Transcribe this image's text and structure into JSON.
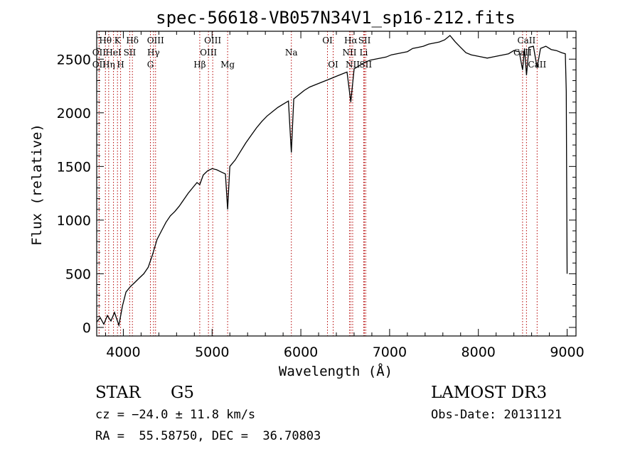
{
  "chart_data": {
    "type": "line",
    "title": "spec-56618-VB057N34V1_sp16-212.fits",
    "xlabel": "Wavelength (Å)",
    "ylabel": "Flux (relative)",
    "xlim": [
      3700,
      9100
    ],
    "ylim": [
      -80,
      2760
    ],
    "xticks": [
      4000,
      5000,
      6000,
      7000,
      8000,
      9000
    ],
    "yticks": [
      0,
      500,
      1000,
      1500,
      2000,
      2500
    ],
    "series": [
      {
        "name": "flux",
        "points": [
          [
            3700,
            50
          ],
          [
            3740,
            90
          ],
          [
            3780,
            30
          ],
          [
            3820,
            110
          ],
          [
            3860,
            60
          ],
          [
            3900,
            140
          ],
          [
            3950,
            20
          ],
          [
            3990,
            200
          ],
          [
            4030,
            330
          ],
          [
            4080,
            380
          ],
          [
            4130,
            420
          ],
          [
            4180,
            460
          ],
          [
            4230,
            500
          ],
          [
            4280,
            560
          ],
          [
            4330,
            680
          ],
          [
            4380,
            820
          ],
          [
            4430,
            900
          ],
          [
            4480,
            980
          ],
          [
            4530,
            1040
          ],
          [
            4580,
            1080
          ],
          [
            4630,
            1130
          ],
          [
            4680,
            1190
          ],
          [
            4730,
            1250
          ],
          [
            4780,
            1300
          ],
          [
            4830,
            1350
          ],
          [
            4861,
            1330
          ],
          [
            4900,
            1420
          ],
          [
            4950,
            1460
          ],
          [
            5000,
            1480
          ],
          [
            5050,
            1470
          ],
          [
            5100,
            1450
          ],
          [
            5150,
            1430
          ],
          [
            5175,
            1100
          ],
          [
            5200,
            1500
          ],
          [
            5260,
            1560
          ],
          [
            5320,
            1640
          ],
          [
            5380,
            1720
          ],
          [
            5440,
            1790
          ],
          [
            5500,
            1860
          ],
          [
            5560,
            1920
          ],
          [
            5620,
            1970
          ],
          [
            5680,
            2010
          ],
          [
            5740,
            2050
          ],
          [
            5800,
            2080
          ],
          [
            5860,
            2110
          ],
          [
            5893,
            1630
          ],
          [
            5920,
            2130
          ],
          [
            5980,
            2170
          ],
          [
            6040,
            2210
          ],
          [
            6100,
            2240
          ],
          [
            6160,
            2260
          ],
          [
            6220,
            2280
          ],
          [
            6280,
            2300
          ],
          [
            6340,
            2320
          ],
          [
            6400,
            2340
          ],
          [
            6460,
            2360
          ],
          [
            6520,
            2380
          ],
          [
            6563,
            2100
          ],
          [
            6600,
            2410
          ],
          [
            6660,
            2440
          ],
          [
            6720,
            2470
          ],
          [
            6780,
            2490
          ],
          [
            6840,
            2500
          ],
          [
            6900,
            2510
          ],
          [
            6960,
            2520
          ],
          [
            7020,
            2540
          ],
          [
            7080,
            2550
          ],
          [
            7140,
            2560
          ],
          [
            7200,
            2570
          ],
          [
            7260,
            2600
          ],
          [
            7320,
            2610
          ],
          [
            7380,
            2620
          ],
          [
            7440,
            2640
          ],
          [
            7500,
            2650
          ],
          [
            7560,
            2660
          ],
          [
            7620,
            2680
          ],
          [
            7680,
            2720
          ],
          [
            7740,
            2660
          ],
          [
            7800,
            2610
          ],
          [
            7860,
            2560
          ],
          [
            7920,
            2540
          ],
          [
            7980,
            2530
          ],
          [
            8040,
            2520
          ],
          [
            8100,
            2510
          ],
          [
            8160,
            2520
          ],
          [
            8220,
            2530
          ],
          [
            8280,
            2540
          ],
          [
            8340,
            2550
          ],
          [
            8400,
            2580
          ],
          [
            8460,
            2570
          ],
          [
            8498,
            2400
          ],
          [
            8520,
            2600
          ],
          [
            8542,
            2350
          ],
          [
            8570,
            2610
          ],
          [
            8620,
            2620
          ],
          [
            8662,
            2420
          ],
          [
            8700,
            2600
          ],
          [
            8760,
            2620
          ],
          [
            8820,
            2590
          ],
          [
            8880,
            2580
          ],
          [
            8940,
            2560
          ],
          [
            8980,
            2550
          ],
          [
            8990,
            2200
          ],
          [
            9000,
            500
          ]
        ]
      }
    ],
    "spectral_lines": [
      {
        "label": "Hθ",
        "wavelength": 3798,
        "level": 1
      },
      {
        "label": "OII",
        "wavelength": 3727,
        "level": 2
      },
      {
        "label": "OII",
        "wavelength": 3727,
        "level": 3
      },
      {
        "label": "Hη",
        "wavelength": 3835,
        "level": 3
      },
      {
        "label": "K",
        "wavelength": 3934,
        "level": 1
      },
      {
        "label": "HeI",
        "wavelength": 3889,
        "level": 2
      },
      {
        "label": "H",
        "wavelength": 3969,
        "level": 3
      },
      {
        "label": "Hδ",
        "wavelength": 4102,
        "level": 1
      },
      {
        "label": "SII",
        "wavelength": 4072,
        "level": 2
      },
      {
        "label": "OIII",
        "wavelength": 4363,
        "level": 1
      },
      {
        "label": "Hγ",
        "wavelength": 4340,
        "level": 2
      },
      {
        "label": "G",
        "wavelength": 4305,
        "level": 3
      },
      {
        "label": "Hβ",
        "wavelength": 4861,
        "level": 3
      },
      {
        "label": "OIII",
        "wavelength": 5007,
        "level": 1
      },
      {
        "label": "OIII",
        "wavelength": 4959,
        "level": 2
      },
      {
        "label": "Mg",
        "wavelength": 5175,
        "level": 3
      },
      {
        "label": "Na",
        "wavelength": 5893,
        "level": 2
      },
      {
        "label": "OI",
        "wavelength": 6300,
        "level": 1
      },
      {
        "label": "OI",
        "wavelength": 6364,
        "level": 3
      },
      {
        "label": "Hα",
        "wavelength": 6563,
        "level": 1
      },
      {
        "label": "NII",
        "wavelength": 6548,
        "level": 2
      },
      {
        "label": "NII",
        "wavelength": 6584,
        "level": 3
      },
      {
        "label": "SII",
        "wavelength": 6717,
        "level": 1
      },
      {
        "label": "Li",
        "wavelength": 6708,
        "level": 2
      },
      {
        "label": "SII",
        "wavelength": 6731,
        "level": 3
      },
      {
        "label": "CaII",
        "wavelength": 8542,
        "level": 1
      },
      {
        "label": "CaII",
        "wavelength": 8498,
        "level": 2
      },
      {
        "label": "CaII",
        "wavelength": 8662,
        "level": 3
      }
    ],
    "line_color": "#000000",
    "marker_color": "#b40000"
  },
  "info": {
    "object_class": "STAR",
    "subclass": "G5",
    "survey": "LAMOST DR3",
    "cz": "cz = −24.0 ± 11.8 km/s",
    "obs_date": "Obs-Date: 20131121",
    "coords": "RA =  55.58750, DEC =  36.70803"
  }
}
